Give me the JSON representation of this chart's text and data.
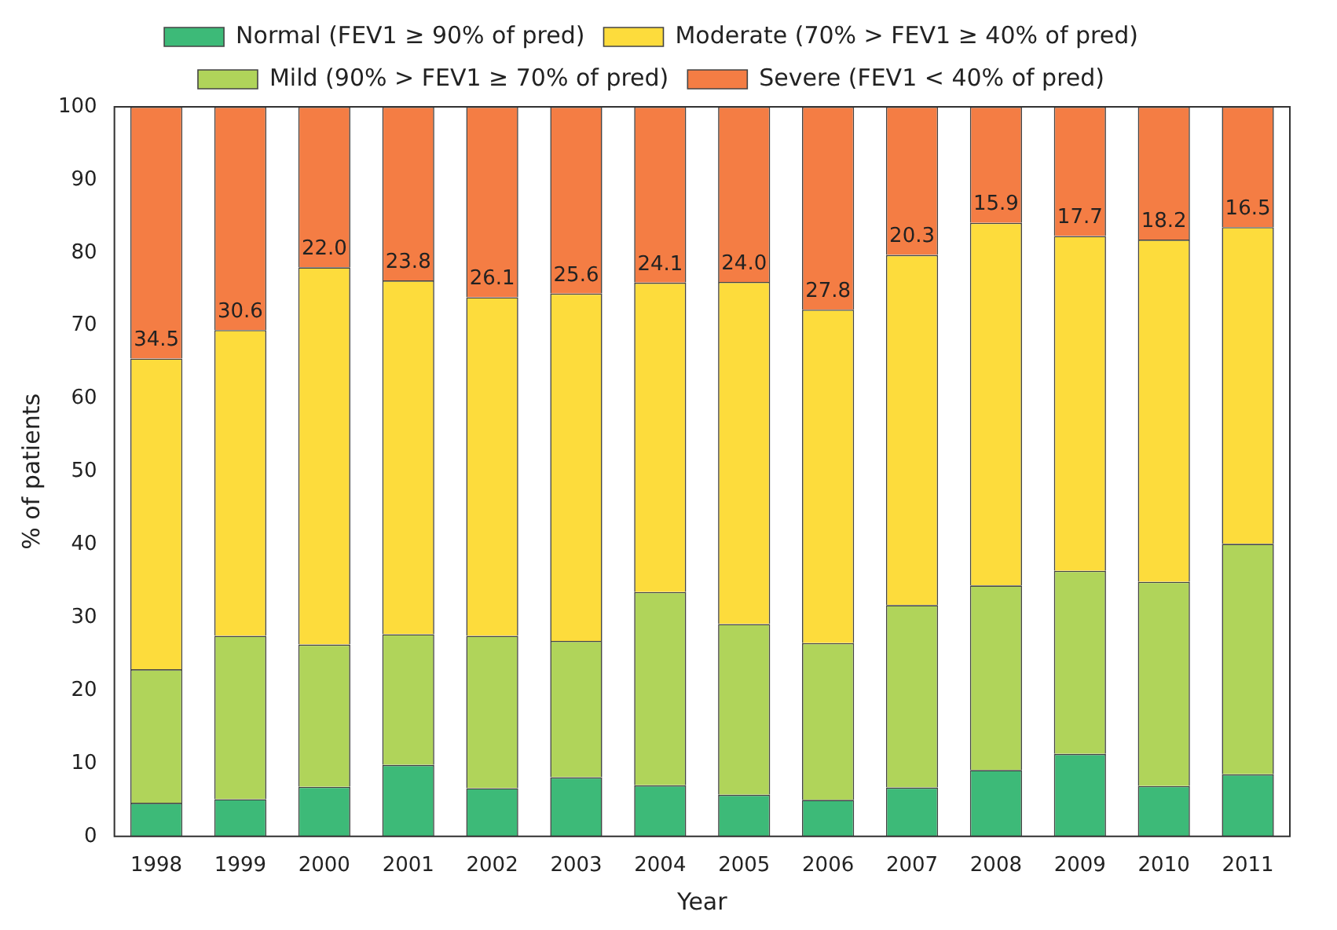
{
  "chart_data": {
    "type": "bar",
    "stacked": true,
    "xlabel": "Year",
    "ylabel": "% of patients",
    "categories": [
      "1998",
      "1999",
      "2000",
      "2001",
      "2002",
      "2003",
      "2004",
      "2005",
      "2006",
      "2007",
      "2008",
      "2009",
      "2010",
      "2011"
    ],
    "ylim": [
      0,
      100
    ],
    "yticks": [
      0,
      10,
      20,
      30,
      40,
      50,
      60,
      70,
      80,
      90,
      100
    ],
    "grid": false,
    "legend": "top",
    "series": [
      {
        "name": "Normal (FEV1 ≥ 90% of pred)",
        "color": "#3dba78",
        "values": [
          4.6,
          5.1,
          6.8,
          9.8,
          6.6,
          8.1,
          7.0,
          5.7,
          5.0,
          6.7,
          9.1,
          11.3,
          6.9,
          8.5
        ]
      },
      {
        "name": "Mild (90% > FEV1 ≥ 70% of pred)",
        "color": "#b0d45a",
        "values": [
          18.3,
          22.4,
          19.5,
          17.9,
          20.9,
          18.7,
          26.5,
          23.4,
          21.5,
          25.0,
          25.3,
          25.1,
          28.0,
          31.6
        ]
      },
      {
        "name": "Moderate (70% > FEV1 ≥ 40% of pred)",
        "color": "#fddc3c",
        "values": [
          42.6,
          41.9,
          51.7,
          48.5,
          46.4,
          47.6,
          42.4,
          46.9,
          45.7,
          48.0,
          49.7,
          45.9,
          46.9,
          43.4
        ]
      },
      {
        "name": "Severe (FEV1 < 40% of pred)",
        "color": "#f47d44",
        "values": [
          34.5,
          30.6,
          22.0,
          23.8,
          26.1,
          25.6,
          24.1,
          24.0,
          27.8,
          20.3,
          15.9,
          17.7,
          18.2,
          16.5
        ],
        "value_labels": [
          "34.5",
          "30.6",
          "22.0",
          "23.8",
          "26.1",
          "25.6",
          "24.1",
          "24.0",
          "27.8",
          "20.3",
          "15.9",
          "17.7",
          "18.2",
          "16.5"
        ]
      }
    ]
  }
}
